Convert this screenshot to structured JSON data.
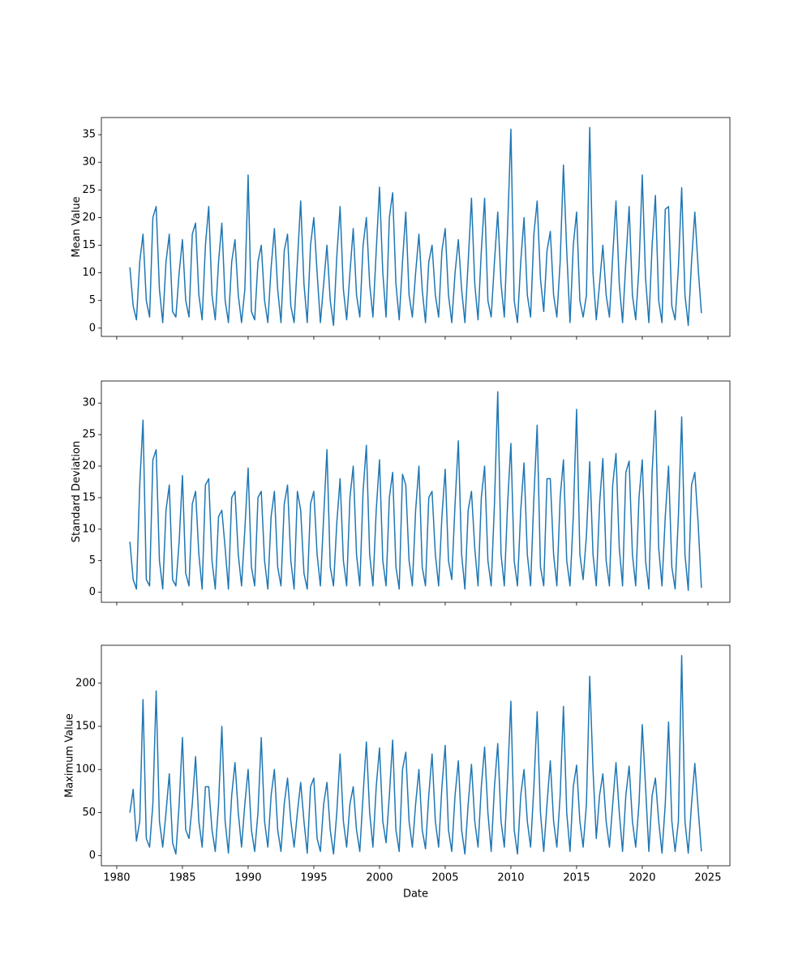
{
  "chart_data": [
    {
      "type": "line",
      "ylabel": "Mean Value",
      "color": "#1f77b4",
      "xlim": [
        1978.83,
        2026.67
      ],
      "xticks": [
        1980,
        1985,
        1990,
        1995,
        2000,
        2005,
        2010,
        2015,
        2020,
        2025
      ],
      "ylim": [
        -1.5,
        38.1
      ],
      "yticks": [
        0,
        5,
        10,
        15,
        20,
        25,
        30,
        35
      ],
      "x": [
        1981,
        1981.25,
        1981.5,
        1981.75,
        1982,
        1982.25,
        1982.5,
        1982.75,
        1983,
        1983.25,
        1983.5,
        1983.75,
        1984,
        1984.25,
        1984.5,
        1984.75,
        1985,
        1985.25,
        1985.5,
        1985.75,
        1986,
        1986.25,
        1986.5,
        1986.75,
        1987,
        1987.25,
        1987.5,
        1987.75,
        1988,
        1988.25,
        1988.5,
        1988.75,
        1989,
        1989.25,
        1989.5,
        1989.75,
        1990,
        1990.25,
        1990.5,
        1990.75,
        1991,
        1991.25,
        1991.5,
        1991.75,
        1992,
        1992.25,
        1992.5,
        1992.75,
        1993,
        1993.25,
        1993.5,
        1993.75,
        1994,
        1994.25,
        1994.5,
        1994.75,
        1995,
        1995.25,
        1995.5,
        1995.75,
        1996,
        1996.25,
        1996.5,
        1996.75,
        1997,
        1997.25,
        1997.5,
        1997.75,
        1998,
        1998.25,
        1998.5,
        1998.75,
        1999,
        1999.25,
        1999.5,
        1999.75,
        2000,
        2000.25,
        2000.5,
        2000.75,
        2001,
        2001.25,
        2001.5,
        2001.75,
        2002,
        2002.25,
        2002.5,
        2002.75,
        2003,
        2003.25,
        2003.5,
        2003.75,
        2004,
        2004.25,
        2004.5,
        2004.75,
        2005,
        2005.25,
        2005.5,
        2005.75,
        2006,
        2006.25,
        2006.5,
        2006.75,
        2007,
        2007.25,
        2007.5,
        2007.75,
        2008,
        2008.25,
        2008.5,
        2008.75,
        2009,
        2009.25,
        2009.5,
        2009.75,
        2010,
        2010.25,
        2010.5,
        2010.75,
        2011,
        2011.25,
        2011.5,
        2011.75,
        2012,
        2012.25,
        2012.5,
        2012.75,
        2013,
        2013.25,
        2013.5,
        2013.75,
        2014,
        2014.25,
        2014.5,
        2014.75,
        2015,
        2015.25,
        2015.5,
        2015.75,
        2016,
        2016.25,
        2016.5,
        2016.75,
        2017,
        2017.25,
        2017.5,
        2017.75,
        2018,
        2018.25,
        2018.5,
        2018.75,
        2019,
        2019.25,
        2019.5,
        2019.75,
        2020,
        2020.25,
        2020.5,
        2020.75,
        2021,
        2021.25,
        2021.5,
        2021.75,
        2022,
        2022.25,
        2022.5,
        2022.75,
        2023,
        2023.25,
        2023.5,
        2023.75,
        2024,
        2024.25,
        2024.5
      ],
      "values": [
        11,
        4,
        1.5,
        12,
        17,
        5,
        2,
        20,
        22,
        7,
        1,
        12,
        17,
        3,
        2,
        10,
        16,
        5,
        2,
        17,
        19,
        6,
        1.5,
        15,
        22,
        6,
        1.5,
        12,
        19,
        5,
        1,
        12,
        16,
        6,
        1,
        7,
        27.7,
        3,
        1.5,
        12,
        15,
        5,
        1,
        11,
        18,
        7,
        1,
        14,
        17,
        4,
        1,
        12,
        23,
        8,
        1,
        15,
        20,
        10,
        1,
        8,
        15,
        5,
        0.5,
        13,
        22,
        7,
        1.5,
        10,
        18,
        6,
        2,
        15,
        20,
        8,
        2,
        14,
        25.5,
        10,
        2,
        20,
        24.5,
        8,
        1.5,
        12,
        21,
        6,
        2,
        10,
        17,
        7,
        1,
        12,
        15,
        6,
        2,
        14,
        18,
        6,
        1,
        10,
        16,
        7,
        1,
        12,
        23.5,
        8,
        1.5,
        14,
        23.5,
        5,
        2,
        12,
        21,
        8,
        2,
        18,
        36,
        5,
        1,
        12,
        20,
        6,
        2,
        17,
        23,
        9,
        3,
        14,
        17.5,
        6,
        2,
        12,
        29.5,
        14,
        1,
        15,
        21,
        5,
        2,
        6,
        36.3,
        10,
        1.5,
        8,
        15,
        6,
        2,
        13,
        23,
        8,
        1,
        12,
        22,
        6,
        1.5,
        11,
        27.7,
        9,
        1,
        15,
        24,
        5,
        1,
        21.5,
        22,
        4,
        1.5,
        11,
        25.4,
        6,
        0.5,
        12,
        21,
        11,
        2.7
      ]
    },
    {
      "type": "line",
      "ylabel": "Standard Deviation",
      "color": "#1f77b4",
      "xlim": [
        1978.83,
        2026.67
      ],
      "xticks": [
        1980,
        1985,
        1990,
        1995,
        2000,
        2005,
        2010,
        2015,
        2020,
        2025
      ],
      "ylim": [
        -1.6,
        33.5
      ],
      "yticks": [
        0,
        5,
        10,
        15,
        20,
        25,
        30
      ],
      "x": [
        1981,
        1981.25,
        1981.5,
        1981.75,
        1982,
        1982.25,
        1982.5,
        1982.75,
        1983,
        1983.25,
        1983.5,
        1983.75,
        1984,
        1984.25,
        1984.5,
        1984.75,
        1985,
        1985.25,
        1985.5,
        1985.75,
        1986,
        1986.25,
        1986.5,
        1986.75,
        1987,
        1987.25,
        1987.5,
        1987.75,
        1988,
        1988.25,
        1988.5,
        1988.75,
        1989,
        1989.25,
        1989.5,
        1989.75,
        1990,
        1990.25,
        1990.5,
        1990.75,
        1991,
        1991.25,
        1991.5,
        1991.75,
        1992,
        1992.25,
        1992.5,
        1992.75,
        1993,
        1993.25,
        1993.5,
        1993.75,
        1994,
        1994.25,
        1994.5,
        1994.75,
        1995,
        1995.25,
        1995.5,
        1995.75,
        1996,
        1996.25,
        1996.5,
        1996.75,
        1997,
        1997.25,
        1997.5,
        1997.75,
        1998,
        1998.25,
        1998.5,
        1998.75,
        1999,
        1999.25,
        1999.5,
        1999.75,
        2000,
        2000.25,
        2000.5,
        2000.75,
        2001,
        2001.25,
        2001.5,
        2001.75,
        2002,
        2002.25,
        2002.5,
        2002.75,
        2003,
        2003.25,
        2003.5,
        2003.75,
        2004,
        2004.25,
        2004.5,
        2004.75,
        2005,
        2005.25,
        2005.5,
        2005.75,
        2006,
        2006.25,
        2006.5,
        2006.75,
        2007,
        2007.25,
        2007.5,
        2007.75,
        2008,
        2008.25,
        2008.5,
        2008.75,
        2009,
        2009.25,
        2009.5,
        2009.75,
        2010,
        2010.25,
        2010.5,
        2010.75,
        2011,
        2011.25,
        2011.5,
        2011.75,
        2012,
        2012.25,
        2012.5,
        2012.75,
        2013,
        2013.25,
        2013.5,
        2013.75,
        2014,
        2014.25,
        2014.5,
        2014.75,
        2015,
        2015.25,
        2015.5,
        2015.75,
        2016,
        2016.25,
        2016.5,
        2016.75,
        2017,
        2017.25,
        2017.5,
        2017.75,
        2018,
        2018.25,
        2018.5,
        2018.75,
        2019,
        2019.25,
        2019.5,
        2019.75,
        2020,
        2020.25,
        2020.5,
        2020.75,
        2021,
        2021.25,
        2021.5,
        2021.75,
        2022,
        2022.25,
        2022.5,
        2022.75,
        2023,
        2023.25,
        2023.5,
        2023.75,
        2024,
        2024.25,
        2024.5
      ],
      "values": [
        8,
        2,
        0.5,
        17,
        27.3,
        2,
        1,
        21,
        22.6,
        5,
        0.5,
        13,
        17,
        2,
        1,
        8,
        18.5,
        3,
        1,
        14,
        16,
        6,
        0.5,
        17,
        18,
        5,
        0.5,
        12,
        13,
        7,
        0.5,
        15,
        16,
        6,
        1,
        10,
        19.7,
        4,
        1,
        15,
        16,
        5,
        0.5,
        12,
        16,
        4,
        1,
        14,
        17,
        5,
        0.5,
        16,
        13,
        3,
        0.5,
        14,
        16,
        6,
        1,
        12,
        22.6,
        4,
        1,
        11,
        18,
        5,
        1,
        15,
        20,
        6,
        1,
        16,
        23.3,
        6,
        1,
        13,
        21,
        5,
        1,
        15,
        19,
        4,
        0.5,
        18.7,
        17,
        5,
        1,
        13,
        20,
        4,
        1,
        15,
        16,
        6,
        1,
        12,
        19.5,
        5,
        2,
        14,
        24,
        6,
        0.5,
        13,
        16,
        7,
        1,
        15,
        20,
        5,
        1,
        14,
        31.8,
        6,
        1,
        14,
        23.6,
        5,
        1,
        13,
        20.5,
        6,
        1,
        15,
        26.5,
        4,
        1,
        18,
        18,
        6,
        1,
        15,
        21,
        5,
        1,
        12,
        29,
        6,
        2,
        9,
        20.7,
        6,
        1,
        14,
        21.2,
        5,
        1,
        17,
        22,
        7,
        1,
        19,
        20.8,
        6,
        1,
        15,
        21,
        5,
        0.5,
        19,
        28.8,
        7,
        1,
        12,
        20,
        4,
        0.5,
        12,
        27.8,
        6,
        0.3,
        17,
        19,
        11,
        0.7
      ]
    },
    {
      "type": "line",
      "ylabel": "Maximum Value",
      "xlabel": "Date",
      "color": "#1f77b4",
      "xlim": [
        1978.83,
        2026.67
      ],
      "xticks": [
        1980,
        1985,
        1990,
        1995,
        2000,
        2005,
        2010,
        2015,
        2020,
        2025
      ],
      "ylim": [
        -11.6,
        244
      ],
      "yticks": [
        0,
        50,
        100,
        150,
        200
      ],
      "x": [
        1981,
        1981.25,
        1981.5,
        1981.75,
        1982,
        1982.25,
        1982.5,
        1982.75,
        1983,
        1983.25,
        1983.5,
        1983.75,
        1984,
        1984.25,
        1984.5,
        1984.75,
        1985,
        1985.25,
        1985.5,
        1985.75,
        1986,
        1986.25,
        1986.5,
        1986.75,
        1987,
        1987.25,
        1987.5,
        1987.75,
        1988,
        1988.25,
        1988.5,
        1988.75,
        1989,
        1989.25,
        1989.5,
        1989.75,
        1990,
        1990.25,
        1990.5,
        1990.75,
        1991,
        1991.25,
        1991.5,
        1991.75,
        1992,
        1992.25,
        1992.5,
        1992.75,
        1993,
        1993.25,
        1993.5,
        1993.75,
        1994,
        1994.25,
        1994.5,
        1994.75,
        1995,
        1995.25,
        1995.5,
        1995.75,
        1996,
        1996.25,
        1996.5,
        1996.75,
        1997,
        1997.25,
        1997.5,
        1997.75,
        1998,
        1998.25,
        1998.5,
        1998.75,
        1999,
        1999.25,
        1999.5,
        1999.75,
        2000,
        2000.25,
        2000.5,
        2000.75,
        2001,
        2001.25,
        2001.5,
        2001.75,
        2002,
        2002.25,
        2002.5,
        2002.75,
        2003,
        2003.25,
        2003.5,
        2003.75,
        2004,
        2004.25,
        2004.5,
        2004.75,
        2005,
        2005.25,
        2005.5,
        2005.75,
        2006,
        2006.25,
        2006.5,
        2006.75,
        2007,
        2007.25,
        2007.5,
        2007.75,
        2008,
        2008.25,
        2008.5,
        2008.75,
        2009,
        2009.25,
        2009.5,
        2009.75,
        2010,
        2010.25,
        2010.5,
        2010.75,
        2011,
        2011.25,
        2011.5,
        2011.75,
        2012,
        2012.25,
        2012.5,
        2012.75,
        2013,
        2013.25,
        2013.5,
        2013.75,
        2014,
        2014.25,
        2014.5,
        2014.75,
        2015,
        2015.25,
        2015.5,
        2015.75,
        2016,
        2016.25,
        2016.5,
        2016.75,
        2017,
        2017.25,
        2017.5,
        2017.75,
        2018,
        2018.25,
        2018.5,
        2018.75,
        2019,
        2019.25,
        2019.5,
        2019.75,
        2020,
        2020.25,
        2020.5,
        2020.75,
        2021,
        2021.25,
        2021.5,
        2021.75,
        2022,
        2022.25,
        2022.5,
        2022.75,
        2023,
        2023.25,
        2023.5,
        2023.75,
        2024,
        2024.25,
        2024.5
      ],
      "values": [
        50,
        77,
        17,
        40,
        181,
        20,
        10,
        60,
        191,
        40,
        10,
        50,
        95,
        15,
        2,
        60,
        137,
        30,
        20,
        60,
        115,
        40,
        10,
        80,
        80,
        30,
        5,
        60,
        150,
        40,
        3,
        70,
        108,
        50,
        10,
        60,
        100,
        30,
        5,
        50,
        137,
        40,
        10,
        70,
        100,
        30,
        5,
        60,
        90,
        40,
        10,
        50,
        85,
        40,
        3,
        80,
        90,
        20,
        5,
        60,
        85,
        30,
        2,
        50,
        118,
        40,
        10,
        60,
        80,
        30,
        5,
        70,
        132,
        50,
        10,
        80,
        125,
        40,
        15,
        70,
        134,
        30,
        5,
        100,
        120,
        40,
        10,
        60,
        100,
        30,
        8,
        70,
        118,
        40,
        10,
        80,
        128,
        30,
        5,
        70,
        110,
        30,
        2,
        60,
        106,
        40,
        10,
        80,
        126,
        50,
        5,
        80,
        130,
        40,
        10,
        90,
        179,
        30,
        2,
        70,
        100,
        40,
        10,
        80,
        167,
        50,
        5,
        60,
        110,
        40,
        10,
        70,
        173,
        50,
        5,
        80,
        105,
        40,
        10,
        60,
        208,
        100,
        20,
        70,
        95,
        40,
        10,
        60,
        108,
        50,
        5,
        70,
        104,
        40,
        10,
        60,
        152,
        80,
        5,
        70,
        90,
        40,
        3,
        60,
        155,
        40,
        5,
        40,
        232,
        40,
        3,
        60,
        107,
        55,
        5
      ]
    }
  ]
}
